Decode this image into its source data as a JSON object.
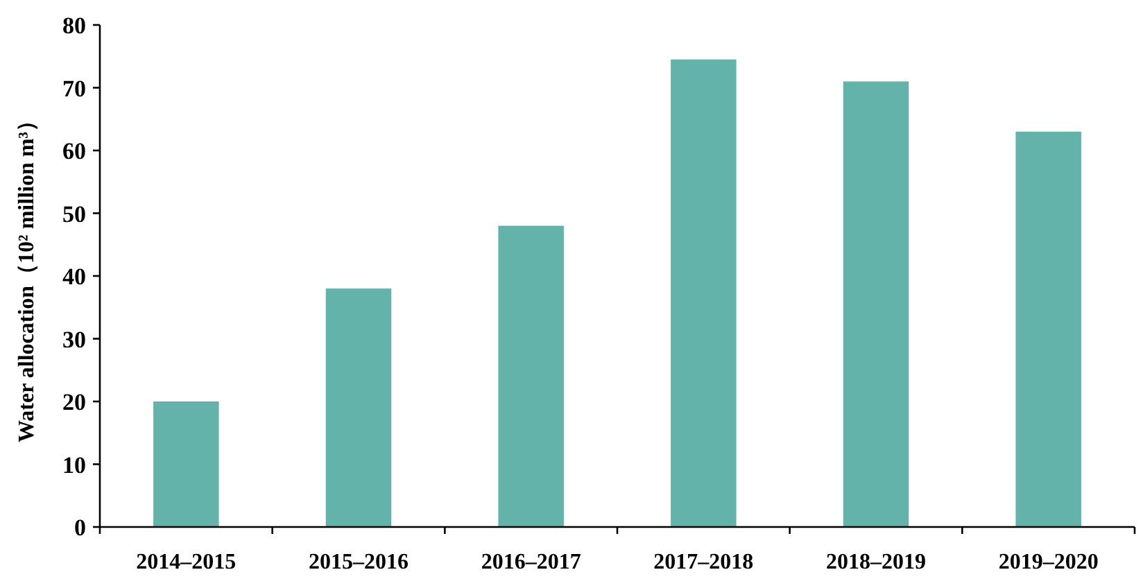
{
  "chart_data": {
    "type": "bar",
    "ylabel": "Water allocation（10² million m³）",
    "categories": [
      "2014–2015",
      "2015–2016",
      "2016–2017",
      "2017–2018",
      "2018–2019",
      "2019–2020"
    ],
    "values": [
      20,
      38,
      48,
      74.5,
      71,
      63
    ],
    "color": "#63b3aa",
    "ylim": [
      0,
      80
    ],
    "yticks": [
      0,
      10,
      20,
      30,
      40,
      50,
      60,
      70,
      80
    ],
    "grid": false
  }
}
